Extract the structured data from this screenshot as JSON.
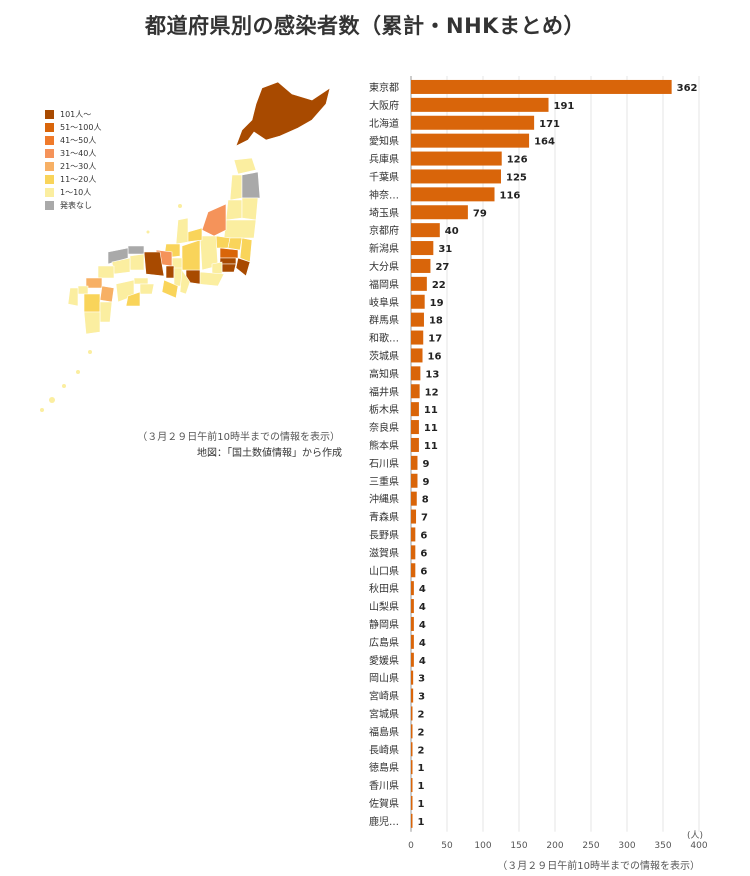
{
  "title": "都道府県別の感染者数（累計・NHKまとめ）",
  "legend": {
    "items": [
      {
        "label": "101人～",
        "color": "#a84a00"
      },
      {
        "label": "51～100人",
        "color": "#d9650a"
      },
      {
        "label": "41～50人",
        "color": "#f07a2a"
      },
      {
        "label": "31～40人",
        "color": "#f5935a"
      },
      {
        "label": "21～30人",
        "color": "#f7b065"
      },
      {
        "label": "11～20人",
        "color": "#f9d45a"
      },
      {
        "label": "1～10人",
        "color": "#fbeea0"
      },
      {
        "label": "発表なし",
        "color": "#a9a9a9"
      }
    ]
  },
  "map_note1": "（３月２９日午前10時半までの情報を表示）",
  "map_note2": "地図：「国土数値情報」から作成",
  "footnote": "（３月２９日午前10時半までの情報を表示）",
  "chart_data": {
    "type": "bar",
    "orientation": "horizontal",
    "bar_color": "#d9650a",
    "categories": [
      "東京都",
      "大阪府",
      "北海道",
      "愛知県",
      "兵庫県",
      "千葉県",
      "神奈…",
      "埼玉県",
      "京都府",
      "新潟県",
      "大分県",
      "福岡県",
      "岐阜県",
      "群馬県",
      "和歌…",
      "茨城県",
      "高知県",
      "福井県",
      "栃木県",
      "奈良県",
      "熊本県",
      "石川県",
      "三重県",
      "沖縄県",
      "青森県",
      "長野県",
      "滋賀県",
      "山口県",
      "秋田県",
      "山梨県",
      "静岡県",
      "広島県",
      "愛媛県",
      "岡山県",
      "宮崎県",
      "宮城県",
      "福島県",
      "長崎県",
      "徳島県",
      "香川県",
      "佐賀県",
      "鹿児…"
    ],
    "values": [
      362,
      191,
      171,
      164,
      126,
      125,
      116,
      79,
      40,
      31,
      27,
      22,
      19,
      18,
      17,
      16,
      13,
      12,
      11,
      11,
      11,
      9,
      9,
      8,
      7,
      6,
      6,
      6,
      4,
      4,
      4,
      4,
      4,
      3,
      3,
      2,
      2,
      2,
      1,
      1,
      1,
      1
    ],
    "xlim": [
      0,
      400
    ],
    "xticks": [
      "0",
      "50",
      "100",
      "150",
      "200",
      "250",
      "300",
      "350",
      "400"
    ],
    "xunit": "(人)",
    "grid": true
  }
}
